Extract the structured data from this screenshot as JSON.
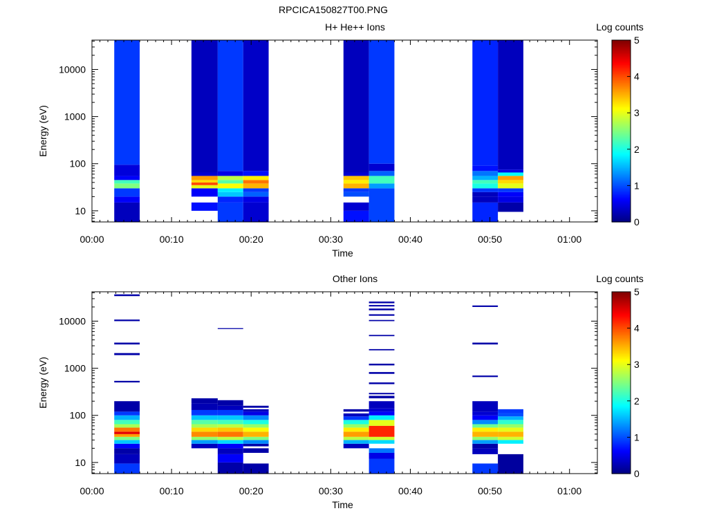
{
  "figure_title": "RPCICA150827T00.PNG",
  "chart_data": [
    {
      "type": "heatmap",
      "title": "H+ He++ Ions",
      "xlabel": "Time",
      "ylabel": "Energy (eV)",
      "x_ticks": [
        "00:00",
        "00:10",
        "00:20",
        "00:30",
        "00:40",
        "00:50",
        "01:00"
      ],
      "x_range_minutes": [
        0,
        63.5
      ],
      "y_scale": "log",
      "y_range": [
        5.8,
        42000
      ],
      "y_ticks": [
        "10",
        "100",
        "1000",
        "10000"
      ],
      "colorbar_label": "Log counts",
      "colorbar_range": [
        0,
        5
      ],
      "colorbar_ticks": [
        "0",
        "1",
        "2",
        "3",
        "4",
        "5"
      ],
      "columns": [
        {
          "t": [
            2.8,
            6.0
          ],
          "bins": [
            [
              5.8,
              15,
              0.3
            ],
            [
              15,
              20,
              0.6
            ],
            [
              20,
              30,
              0.9
            ],
            [
              30,
              38,
              2.5
            ],
            [
              38,
              45,
              2.2
            ],
            [
              45,
              55,
              0.6
            ],
            [
              55,
              95,
              0.45
            ],
            [
              95,
              42000,
              0.9
            ]
          ]
        },
        {
          "t": [
            12.5,
            15.8
          ],
          "bins": [
            [
              10,
              15,
              0.7
            ],
            [
              20,
              30,
              0.6
            ],
            [
              30,
              35,
              3.0
            ],
            [
              35,
              40,
              4.0
            ],
            [
              40,
              45,
              3.3
            ],
            [
              45,
              55,
              3.6
            ],
            [
              55,
              65,
              0.4
            ],
            [
              65,
              42000,
              0.3
            ]
          ]
        },
        {
          "t": [
            15.8,
            19.0
          ],
          "bins": [
            [
              5.8,
              15,
              0.9
            ],
            [
              15,
              20,
              0.8
            ],
            [
              20,
              25,
              1.6
            ],
            [
              25,
              30,
              1.8
            ],
            [
              30,
              38,
              3.1
            ],
            [
              38,
              45,
              2.3
            ],
            [
              45,
              55,
              2.8
            ],
            [
              55,
              70,
              0.5
            ],
            [
              70,
              42000,
              0.9
            ]
          ]
        },
        {
          "t": [
            19.0,
            22.2
          ],
          "bins": [
            [
              5.8,
              15,
              0.4
            ],
            [
              15,
              20,
              0.5
            ],
            [
              20,
              25,
              1.1
            ],
            [
              25,
              30,
              0.9
            ],
            [
              30,
              38,
              3.5
            ],
            [
              38,
              45,
              3.8
            ],
            [
              45,
              55,
              3.2
            ],
            [
              55,
              70,
              0.7
            ],
            [
              70,
              42000,
              0.35
            ]
          ]
        },
        {
          "t": [
            31.6,
            34.8
          ],
          "bins": [
            [
              5.8,
              10,
              0.7
            ],
            [
              10,
              15,
              0.4
            ],
            [
              20,
              25,
              1.0
            ],
            [
              25,
              30,
              0.9
            ],
            [
              30,
              38,
              3.5
            ],
            [
              38,
              45,
              3.2
            ],
            [
              45,
              55,
              3.4
            ],
            [
              55,
              65,
              0.4
            ],
            [
              65,
              42000,
              0.3
            ]
          ]
        },
        {
          "t": [
            34.8,
            38.0
          ],
          "bins": [
            [
              5.8,
              30,
              0.95
            ],
            [
              30,
              38,
              1.4
            ],
            [
              38,
              55,
              2.2
            ],
            [
              55,
              70,
              1.1
            ],
            [
              70,
              100,
              0.4
            ],
            [
              100,
              42000,
              0.9
            ]
          ]
        },
        {
          "t": [
            47.8,
            51.0
          ],
          "bins": [
            [
              5.8,
              15,
              0.8
            ],
            [
              15,
              20,
              0.3
            ],
            [
              20,
              25,
              0.3
            ],
            [
              25,
              30,
              0.9
            ],
            [
              30,
              38,
              2.0
            ],
            [
              38,
              45,
              2.2
            ],
            [
              45,
              55,
              1.5
            ],
            [
              55,
              70,
              1.2
            ],
            [
              70,
              90,
              0.7
            ],
            [
              90,
              42000,
              0.8
            ]
          ]
        },
        {
          "t": [
            51.0,
            54.2
          ],
          "bins": [
            [
              9.5,
              15,
              0.2
            ],
            [
              15,
              20,
              0.5
            ],
            [
              20,
              25,
              0.6
            ],
            [
              25,
              30,
              0.9
            ],
            [
              30,
              38,
              3.0
            ],
            [
              38,
              45,
              3.3
            ],
            [
              45,
              55,
              3.6
            ],
            [
              55,
              65,
              1.9
            ],
            [
              65,
              75,
              0.5
            ],
            [
              75,
              42000,
              0.3
            ]
          ]
        }
      ]
    },
    {
      "type": "heatmap",
      "title": "Other Ions",
      "xlabel": "Time",
      "ylabel": "Energy (eV)",
      "x_ticks": [
        "00:00",
        "00:10",
        "00:20",
        "00:30",
        "00:40",
        "00:50",
        "01:00"
      ],
      "x_range_minutes": [
        0,
        63.5
      ],
      "y_scale": "log",
      "y_range": [
        5.8,
        42000
      ],
      "y_ticks": [
        "10",
        "100",
        "1000",
        "10000"
      ],
      "colorbar_label": "Log counts",
      "colorbar_range": [
        0,
        5
      ],
      "colorbar_ticks": [
        "0",
        "1",
        "2",
        "3",
        "4",
        "5"
      ],
      "columns": [
        {
          "t": [
            2.8,
            6.0
          ],
          "bins": [
            [
              5.8,
              9.5,
              0.9
            ],
            [
              9.5,
              15,
              0.3
            ],
            [
              15,
              20,
              0.2
            ],
            [
              20,
              25,
              0.6
            ],
            [
              25,
              30,
              1.6
            ],
            [
              30,
              35,
              2.5
            ],
            [
              35,
              40,
              3.6
            ],
            [
              40,
              45,
              4.5
            ],
            [
              45,
              55,
              3.8
            ],
            [
              55,
              65,
              2.7
            ],
            [
              65,
              80,
              2.2
            ],
            [
              80,
              100,
              1.5
            ],
            [
              100,
              120,
              0.9
            ],
            [
              120,
              200,
              0.2
            ],
            [
              500,
              540,
              0.2
            ],
            [
              1900,
              2100,
              0.2
            ],
            [
              3200,
              3500,
              0.2
            ],
            [
              10000,
              10800,
              0.2
            ],
            [
              34000,
              37000,
              0.2
            ]
          ]
        },
        {
          "t": [
            12.5,
            15.8
          ],
          "bins": [
            [
              20,
              25,
              0.3
            ],
            [
              25,
              30,
              1.4
            ],
            [
              30,
              35,
              2.6
            ],
            [
              35,
              45,
              3.7
            ],
            [
              45,
              55,
              3.3
            ],
            [
              55,
              65,
              2.7
            ],
            [
              65,
              80,
              2.3
            ],
            [
              80,
              100,
              1.6
            ],
            [
              100,
              130,
              0.9
            ],
            [
              130,
              180,
              0.25
            ],
            [
              180,
              230,
              0.2
            ]
          ]
        },
        {
          "t": [
            15.8,
            19.0
          ],
          "bins": [
            [
              5.8,
              10,
              0.2
            ],
            [
              10,
              15,
              0.6
            ],
            [
              15,
              20,
              0.3
            ],
            [
              20,
              25,
              0.6
            ],
            [
              25,
              30,
              1.7
            ],
            [
              30,
              35,
              2.8
            ],
            [
              35,
              45,
              3.8
            ],
            [
              45,
              55,
              3.4
            ],
            [
              55,
              65,
              2.8
            ],
            [
              65,
              80,
              2.2
            ],
            [
              80,
              100,
              1.6
            ],
            [
              100,
              130,
              0.9
            ],
            [
              130,
              160,
              0.3
            ],
            [
              160,
              210,
              0.2
            ],
            [
              6800,
              7100,
              0.2
            ]
          ]
        },
        {
          "t": [
            19.0,
            22.2
          ],
          "bins": [
            [
              5.8,
              9.5,
              0.2
            ],
            [
              16,
              20,
              0.2
            ],
            [
              22,
              25,
              0.2
            ],
            [
              25,
              30,
              1.3
            ],
            [
              30,
              35,
              2.5
            ],
            [
              35,
              45,
              3.5
            ],
            [
              45,
              55,
              3.1
            ],
            [
              55,
              65,
              2.6
            ],
            [
              65,
              80,
              2.0
            ],
            [
              80,
              100,
              1.3
            ],
            [
              100,
              120,
              0.5
            ],
            [
              120,
              135,
              0.3
            ],
            [
              145,
              160,
              0.2
            ]
          ]
        },
        {
          "t": [
            31.6,
            34.8
          ],
          "bins": [
            [
              20,
              25,
              0.3
            ],
            [
              25,
              30,
              1.5
            ],
            [
              30,
              35,
              2.8
            ],
            [
              35,
              45,
              3.6
            ],
            [
              45,
              55,
              3.2
            ],
            [
              55,
              65,
              2.6
            ],
            [
              65,
              80,
              2.0
            ],
            [
              80,
              95,
              0.9
            ],
            [
              95,
              110,
              0.3
            ],
            [
              120,
              135,
              0.2
            ]
          ]
        },
        {
          "t": [
            34.8,
            38.0
          ],
          "bins": [
            [
              5.8,
              12,
              0.9
            ],
            [
              12,
              16,
              0.5
            ],
            [
              16,
              20,
              1.2
            ],
            [
              25,
              30,
              1.7
            ],
            [
              30,
              35,
              2.9
            ],
            [
              35,
              60,
              4.2
            ],
            [
              60,
              80,
              3.0
            ],
            [
              80,
              100,
              1.8
            ],
            [
              100,
              120,
              0.6
            ],
            [
              120,
              140,
              0.4
            ],
            [
              140,
              200,
              0.3
            ],
            [
              230,
              260,
              0.2
            ],
            [
              280,
              300,
              0.2
            ],
            [
              460,
              500,
              0.2
            ],
            [
              760,
              830,
              0.2
            ],
            [
              1150,
              1250,
              0.2
            ],
            [
              2400,
              2550,
              0.2
            ],
            [
              4800,
              5100,
              0.2
            ],
            [
              10000,
              10600,
              0.2
            ],
            [
              13000,
              14000,
              0.2
            ],
            [
              17000,
              18500,
              0.2
            ],
            [
              20500,
              22000,
              0.2
            ],
            [
              24000,
              26000,
              0.2
            ]
          ]
        },
        {
          "t": [
            47.8,
            51.0
          ],
          "bins": [
            [
              5.8,
              9.5,
              0.9
            ],
            [
              15,
              20,
              0.3
            ],
            [
              20,
              25,
              0.2
            ],
            [
              25,
              30,
              1.4
            ],
            [
              30,
              35,
              2.6
            ],
            [
              35,
              45,
              3.5
            ],
            [
              45,
              55,
              3.2
            ],
            [
              55,
              65,
              2.4
            ],
            [
              65,
              80,
              1.3
            ],
            [
              80,
              100,
              0.6
            ],
            [
              100,
              120,
              0.4
            ],
            [
              120,
              200,
              0.3
            ],
            [
              650,
              700,
              0.2
            ],
            [
              3200,
              3500,
              0.2
            ],
            [
              20000,
              21500,
              0.2
            ]
          ]
        },
        {
          "t": [
            51.0,
            54.2
          ],
          "bins": [
            [
              5.8,
              15,
              0.15
            ],
            [
              25,
              30,
              1.8
            ],
            [
              30,
              35,
              2.9
            ],
            [
              35,
              45,
              3.5
            ],
            [
              45,
              55,
              3.0
            ],
            [
              55,
              65,
              2.6
            ],
            [
              65,
              80,
              2.1
            ],
            [
              80,
              95,
              1.5
            ],
            [
              95,
              110,
              1.0
            ],
            [
              110,
              135,
              0.9
            ]
          ]
        }
      ]
    }
  ]
}
